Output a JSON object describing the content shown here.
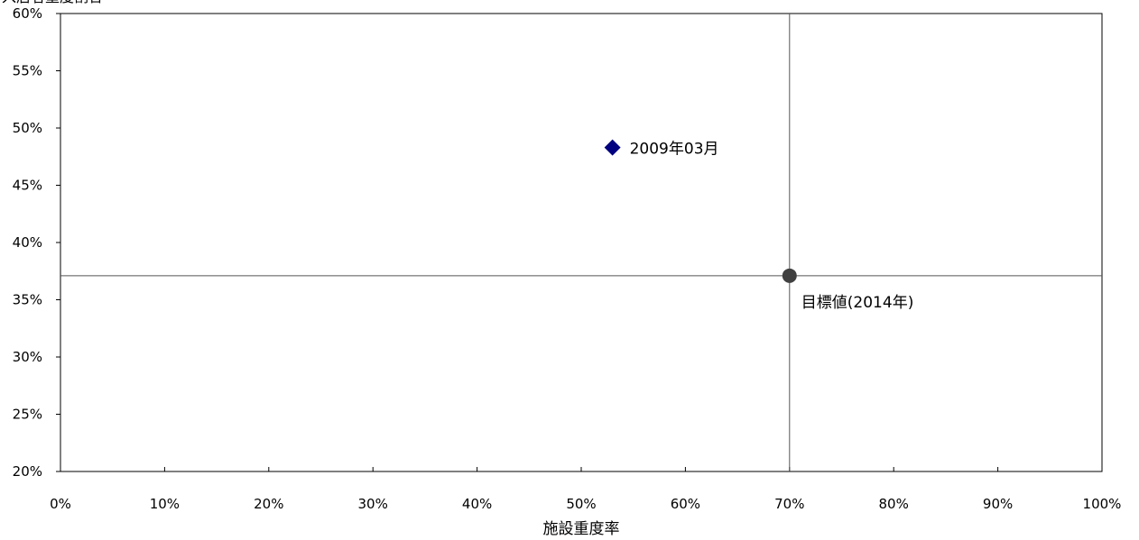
{
  "chart_data": {
    "type": "scatter",
    "xlabel": "施設重度率",
    "ylabel": "",
    "xlim": [
      0,
      100
    ],
    "ylim": [
      20,
      60
    ],
    "x_ticks": [
      "0%",
      "10%",
      "20%",
      "30%",
      "40%",
      "50%",
      "60%",
      "70%",
      "80%",
      "90%",
      "100%"
    ],
    "y_ticks": [
      "20%",
      "25%",
      "30%",
      "35%",
      "40%",
      "45%",
      "50%",
      "55%",
      "60%"
    ],
    "grid": false,
    "points": [
      {
        "x": 53,
        "y": 48.3,
        "label": "2009年03月",
        "marker": "diamond",
        "color": "#000080"
      },
      {
        "x": 70,
        "y": 37.1,
        "label": "目標値(2014年)",
        "marker": "circle",
        "color": "#404040"
      }
    ],
    "reference_lines": [
      {
        "orientation": "vertical",
        "value": 70
      },
      {
        "orientation": "horizontal",
        "value": 37.1
      }
    ]
  }
}
